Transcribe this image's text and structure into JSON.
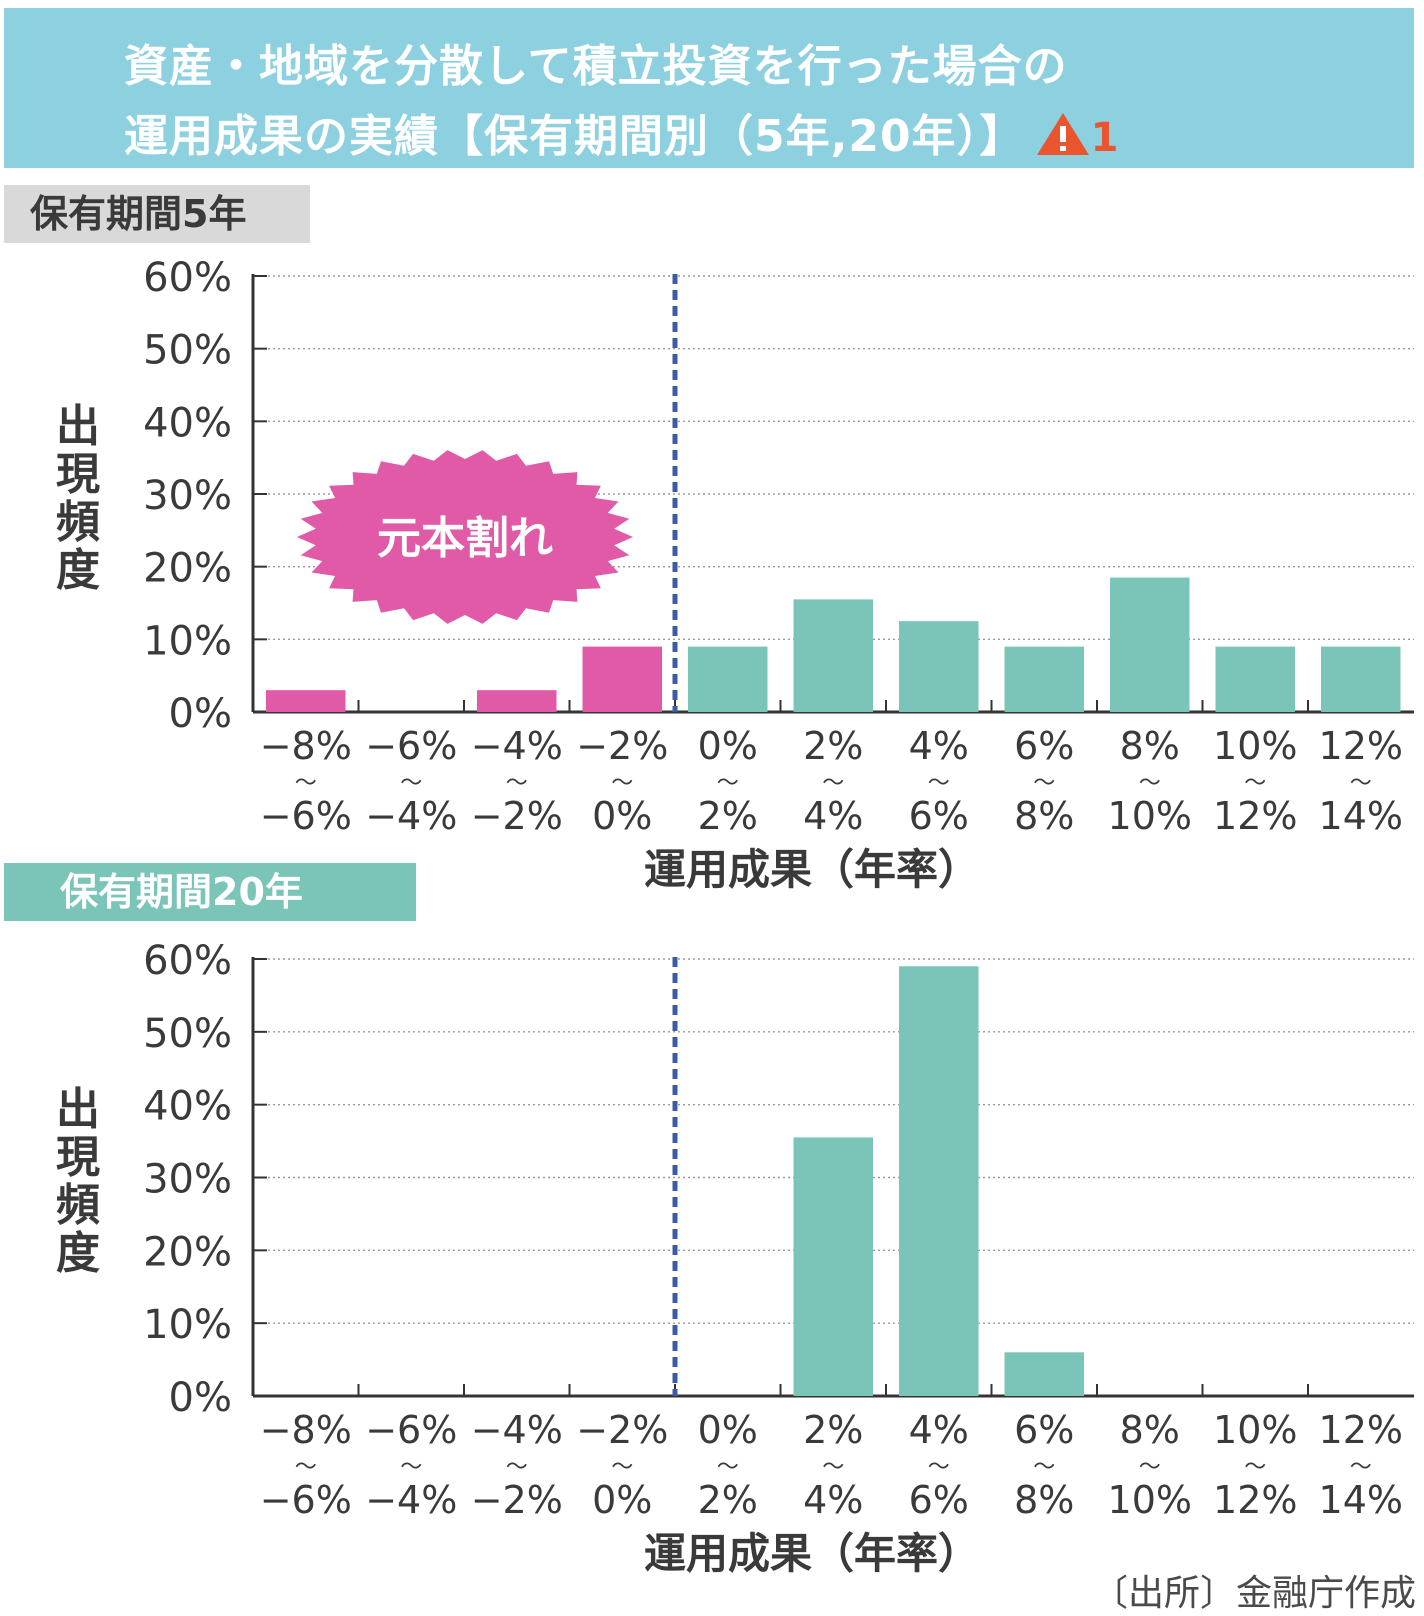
{
  "header": {
    "title_line1": "資産・地域を分散して積立投資を行った場合の",
    "title_line2": "運用成果の実績【保有期間別（5年,20年）】",
    "warning_number": "1",
    "bg_color": "#8dd0e0",
    "warning_icon": "warning-triangle-icon"
  },
  "panels": [
    {
      "tag": "保有期間5年"
    },
    {
      "tag": "保有期間20年"
    }
  ],
  "badge": {
    "label": "元本割れ",
    "color": "#e05aa8"
  },
  "source": "〔出所〕金融庁作成",
  "colors": {
    "loss": "#e05aa8",
    "gain": "#7bc4b8",
    "divider": "#3b5ba8"
  },
  "chart_data": [
    {
      "type": "bar",
      "panel": "保有期間5年",
      "ylabel": "出現頻度",
      "xlabel": "運用成果（年率）",
      "ylim": [
        0,
        60
      ],
      "yticks": [
        "0%",
        "10%",
        "20%",
        "30%",
        "40%",
        "50%",
        "60%"
      ],
      "categories": [
        [
          "−8%",
          "〜",
          "−6%"
        ],
        [
          "−6%",
          "〜",
          "−4%"
        ],
        [
          "−4%",
          "〜",
          "−2%"
        ],
        [
          "−2%",
          "〜",
          "0%"
        ],
        [
          "0%",
          "〜",
          "2%"
        ],
        [
          "2%",
          "〜",
          "4%"
        ],
        [
          "4%",
          "〜",
          "6%"
        ],
        [
          "6%",
          "〜",
          "8%"
        ],
        [
          "8%",
          "〜",
          "10%"
        ],
        [
          "10%",
          "〜",
          "12%"
        ],
        [
          "12%",
          "〜",
          "14%"
        ]
      ],
      "values": [
        3,
        0,
        3,
        9,
        9,
        15.5,
        12.5,
        9,
        18.5,
        9,
        9
      ],
      "divider_at": "0%",
      "grid": true
    },
    {
      "type": "bar",
      "panel": "保有期間20年",
      "ylabel": "出現頻度",
      "xlabel": "運用成果（年率）",
      "ylim": [
        0,
        60
      ],
      "yticks": [
        "0%",
        "10%",
        "20%",
        "30%",
        "40%",
        "50%",
        "60%"
      ],
      "categories": [
        [
          "−8%",
          "〜",
          "−6%"
        ],
        [
          "−6%",
          "〜",
          "−4%"
        ],
        [
          "−4%",
          "〜",
          "−2%"
        ],
        [
          "−2%",
          "〜",
          "0%"
        ],
        [
          "0%",
          "〜",
          "2%"
        ],
        [
          "2%",
          "〜",
          "4%"
        ],
        [
          "4%",
          "〜",
          "6%"
        ],
        [
          "6%",
          "〜",
          "8%"
        ],
        [
          "8%",
          "〜",
          "10%"
        ],
        [
          "10%",
          "〜",
          "12%"
        ],
        [
          "12%",
          "〜",
          "14%"
        ]
      ],
      "values": [
        0,
        0,
        0,
        0,
        0,
        35.5,
        59,
        6,
        0,
        0,
        0
      ],
      "divider_at": "0%",
      "grid": true
    }
  ]
}
